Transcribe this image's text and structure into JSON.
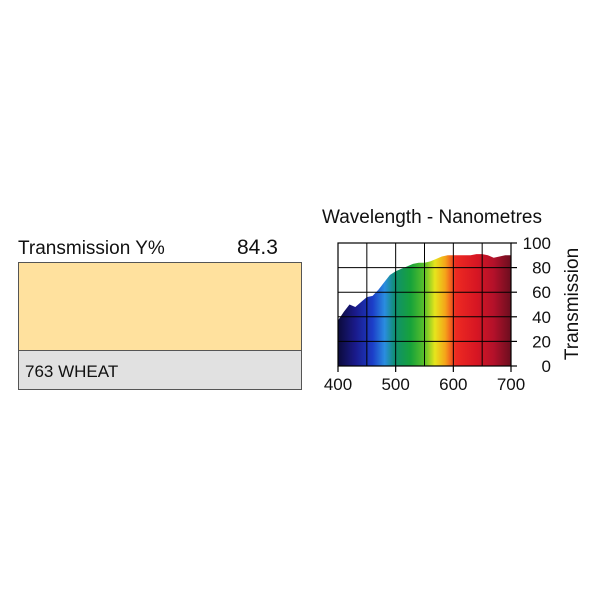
{
  "filter": {
    "transmission_label": "Transmission Y%",
    "transmission_value": "84.3",
    "name": "763 WHEAT",
    "swatch_color": "#ffe19e"
  },
  "chart_data": {
    "type": "area",
    "title": "Wavelength - Nanometres",
    "xlabel": "",
    "ylabel": "Transmission",
    "xlim": [
      400,
      700
    ],
    "ylim": [
      0,
      100
    ],
    "xticks": [
      400,
      500,
      600,
      700
    ],
    "yticks": [
      0,
      20,
      40,
      60,
      80,
      100
    ],
    "grid": true,
    "series": [
      {
        "x": [
          400,
          410,
          420,
          430,
          440,
          450,
          460,
          470,
          480,
          490,
          500,
          510,
          520,
          530,
          540,
          550,
          560,
          570,
          580,
          590,
          600,
          610,
          620,
          630,
          640,
          650,
          660,
          670,
          680,
          690,
          700
        ],
        "y": [
          37,
          44,
          50,
          48,
          52,
          56,
          57,
          62,
          68,
          74,
          77,
          79,
          81,
          83,
          84,
          84,
          85,
          87,
          89,
          90,
          90,
          90,
          90,
          90,
          91,
          91,
          90,
          88,
          89,
          90,
          90
        ]
      }
    ]
  }
}
